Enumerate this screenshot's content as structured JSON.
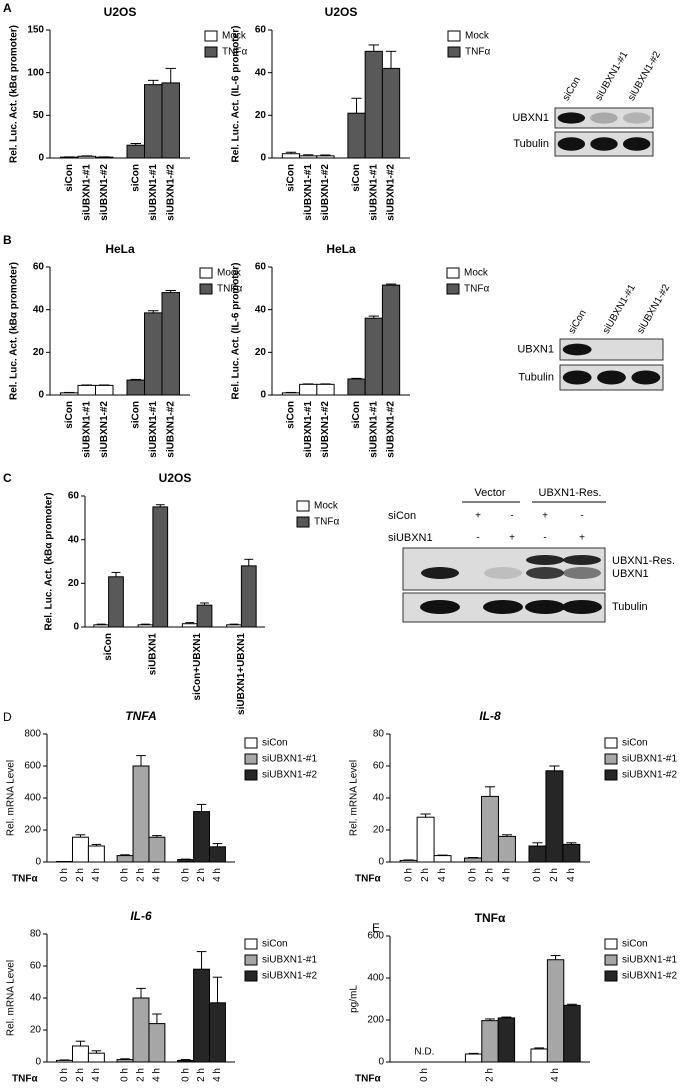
{
  "panel_labels": [
    "A",
    "B",
    "C",
    "D",
    "E"
  ],
  "chart_data": [
    {
      "type": "bar",
      "title": "U2OS",
      "y_label": "Rel. Luc. Act. (kBα promoter)",
      "categories": [
        "siCon",
        "siUBXN1-#1",
        "siUBXN1-#2",
        "siCon",
        "siUBXN1-#1",
        "siUBXN1-#2"
      ],
      "ylim": [
        0,
        150
      ],
      "yticks": [
        0,
        50,
        100,
        150
      ],
      "series": [
        {
          "name": "Mock",
          "color": "#ffffff",
          "values": [
            1,
            2,
            1,
            null,
            null,
            null
          ],
          "errors": [
            0.3,
            0.5,
            0.3,
            null,
            null,
            null
          ]
        },
        {
          "name": "TNFα",
          "color": "#595959",
          "values": [
            null,
            null,
            null,
            15,
            86,
            88
          ],
          "errors": [
            null,
            null,
            null,
            2,
            5,
            17
          ]
        }
      ]
    },
    {
      "type": "bar",
      "title": "U2OS",
      "y_label": "Rel. Luc. Act. (IL-6 promoter)",
      "categories": [
        "siCon",
        "siUBXN1-#1",
        "siUBXN1-#2",
        "siCon",
        "siUBXN1-#1",
        "siUBXN1-#2"
      ],
      "ylim": [
        0,
        60
      ],
      "yticks": [
        0,
        20,
        40,
        60
      ],
      "series": [
        {
          "name": "Mock",
          "color": "#ffffff",
          "values": [
            2,
            1,
            1,
            null,
            null,
            null
          ],
          "errors": [
            0.7,
            0.5,
            0.4,
            null,
            null,
            null
          ]
        },
        {
          "name": "TNFα",
          "color": "#595959",
          "values": [
            null,
            null,
            null,
            21,
            50,
            42
          ],
          "errors": [
            null,
            null,
            null,
            7,
            3,
            8
          ]
        }
      ]
    },
    {
      "type": "bar",
      "title": "HeLa",
      "y_label": "Rel. Luc. Act. (kBα promoter)",
      "categories": [
        "siCon",
        "siUBXN1-#1",
        "siUBXN1-#2",
        "siCon",
        "siUBXN1-#1",
        "siUBXN1-#2"
      ],
      "ylim": [
        0,
        60
      ],
      "yticks": [
        0,
        20,
        40,
        60
      ],
      "series": [
        {
          "name": "Mock",
          "color": "#ffffff",
          "values": [
            1,
            4.5,
            4.5,
            null,
            null,
            null
          ],
          "errors": [
            0.2,
            0.2,
            0.2,
            null,
            null,
            null
          ]
        },
        {
          "name": "TNFα",
          "color": "#595959",
          "values": [
            null,
            null,
            null,
            7,
            38.5,
            48
          ],
          "errors": [
            null,
            null,
            null,
            0.3,
            1,
            1
          ]
        }
      ]
    },
    {
      "type": "bar",
      "title": "HeLa",
      "y_label": "Rel. Luc. Act. (IL-6 promoter)",
      "categories": [
        "siCon",
        "siUBXN1-#1",
        "siUBXN1-#2",
        "siCon",
        "siUBXN1-#1",
        "siUBXN1-#2"
      ],
      "ylim": [
        0,
        60
      ],
      "yticks": [
        0,
        20,
        40,
        60
      ],
      "series": [
        {
          "name": "Mock",
          "color": "#ffffff",
          "values": [
            1,
            5,
            5,
            null,
            null,
            null
          ],
          "errors": [
            0.2,
            0.2,
            0.2,
            null,
            null,
            null
          ]
        },
        {
          "name": "TNFα",
          "color": "#595959",
          "values": [
            null,
            null,
            null,
            7.5,
            36,
            51.5
          ],
          "errors": [
            null,
            null,
            null,
            0.3,
            1,
            0.5
          ]
        }
      ]
    },
    {
      "type": "bar",
      "title": "U2OS",
      "y_label": "Rel. Luc. Act. (kBα promoter)",
      "categories": [
        "siCon",
        "siUBXN1",
        "siCon+UBXN1",
        "siUBXN1+UBXN1"
      ],
      "ylim": [
        0,
        60
      ],
      "yticks": [
        0,
        20,
        40,
        60
      ],
      "series": [
        {
          "name": "Mock",
          "color": "#ffffff",
          "values": [
            1,
            1,
            1.5,
            1
          ],
          "errors": [
            0.3,
            0.3,
            0.5,
            0.3
          ]
        },
        {
          "name": "TNFα",
          "color": "#595959",
          "values": [
            23,
            55,
            10,
            28
          ],
          "errors": [
            2,
            1,
            1,
            3
          ]
        }
      ]
    },
    {
      "type": "bar",
      "title": "TNFA",
      "title_italic": true,
      "y_label": "Rel. mRNA Level",
      "x_label": "TNFα",
      "categories": [
        "0 h",
        "2 h",
        "4 h",
        "0 h",
        "2 h",
        "4 h",
        "0 h",
        "2 h",
        "4 h"
      ],
      "ylim": [
        0,
        800
      ],
      "yticks": [
        0,
        200,
        400,
        600,
        800
      ],
      "series": [
        {
          "name": "siCon",
          "color": "#ffffff",
          "values": [
            3,
            155,
            100,
            null,
            null,
            null,
            null,
            null,
            null
          ],
          "errors": [
            null,
            15,
            10,
            null,
            null,
            null,
            null,
            null,
            null
          ]
        },
        {
          "name": "siUBXN1-#1",
          "color": "#a6a6a6",
          "values": [
            null,
            null,
            null,
            40,
            600,
            155,
            null,
            null,
            null
          ],
          "errors": [
            null,
            null,
            null,
            5,
            65,
            10,
            null,
            null,
            null
          ]
        },
        {
          "name": "siUBXN1-#2",
          "color": "#262626",
          "values": [
            null,
            null,
            null,
            null,
            null,
            null,
            15,
            315,
            95
          ],
          "errors": [
            null,
            null,
            null,
            null,
            null,
            null,
            3,
            45,
            20
          ]
        }
      ]
    },
    {
      "type": "bar",
      "title": "IL-8",
      "title_italic": true,
      "y_label": "Rel. mRNA Level",
      "x_label": "TNFα",
      "categories": [
        "0 h",
        "2 h",
        "4 h",
        "0 h",
        "2 h",
        "4 h",
        "0 h",
        "2 h",
        "4 h"
      ],
      "ylim": [
        0,
        80
      ],
      "yticks": [
        0,
        20,
        40,
        60,
        80
      ],
      "series": [
        {
          "name": "siCon",
          "color": "#ffffff",
          "values": [
            1,
            28,
            4,
            null,
            null,
            null,
            null,
            null,
            null
          ],
          "errors": [
            0.3,
            2,
            0.3,
            null,
            null,
            null,
            null,
            null,
            null
          ]
        },
        {
          "name": "siUBXN1-#1",
          "color": "#a6a6a6",
          "values": [
            null,
            null,
            null,
            2.5,
            41,
            16,
            null,
            null,
            null
          ],
          "errors": [
            null,
            null,
            null,
            0.3,
            6,
            1,
            null,
            null,
            null
          ]
        },
        {
          "name": "siUBXN1-#2",
          "color": "#262626",
          "values": [
            null,
            null,
            null,
            null,
            null,
            null,
            10,
            57,
            11
          ],
          "errors": [
            null,
            null,
            null,
            null,
            null,
            null,
            2,
            3,
            1
          ]
        }
      ]
    },
    {
      "type": "bar",
      "title": "IL-6",
      "title_italic": true,
      "y_label": "Rel. mRNA Level",
      "x_label": "TNFα",
      "categories": [
        "0 h",
        "2 h",
        "4 h",
        "0 h",
        "2 h",
        "4 h",
        "0 h",
        "2 h",
        "4 h"
      ],
      "ylim": [
        0,
        80
      ],
      "yticks": [
        0,
        20,
        40,
        60,
        80
      ],
      "series": [
        {
          "name": "siCon",
          "color": "#ffffff",
          "values": [
            1,
            10,
            5.5,
            null,
            null,
            null,
            null,
            null,
            null
          ],
          "errors": [
            0.3,
            3,
            1.5,
            null,
            null,
            null,
            null,
            null,
            null
          ]
        },
        {
          "name": "siUBXN1-#1",
          "color": "#a6a6a6",
          "values": [
            null,
            null,
            null,
            1.5,
            40,
            24,
            null,
            null,
            null
          ],
          "errors": [
            null,
            null,
            null,
            0.5,
            6,
            6,
            null,
            null,
            null
          ]
        },
        {
          "name": "siUBXN1-#2",
          "color": "#262626",
          "values": [
            null,
            null,
            null,
            null,
            null,
            null,
            1,
            58,
            37
          ],
          "errors": [
            null,
            null,
            null,
            null,
            null,
            null,
            0.5,
            11,
            16
          ]
        }
      ]
    },
    {
      "type": "bar",
      "title": "TNFα",
      "y_label": "pg/mL",
      "x_label": "TNFα",
      "annotation": "N.D.",
      "categories": [
        "0 h",
        "2 h",
        "4 h"
      ],
      "ylim": [
        0,
        600
      ],
      "yticks": [
        0,
        200,
        400,
        600
      ],
      "series": [
        {
          "name": "siCon",
          "color": "#ffffff",
          "values": [
            null,
            38,
            62
          ],
          "errors": [
            null,
            3,
            5
          ]
        },
        {
          "name": "siUBXN1-#1",
          "color": "#a6a6a6",
          "values": [
            null,
            197,
            487
          ],
          "errors": [
            null,
            8,
            20
          ]
        },
        {
          "name": "siUBXN1-#2",
          "color": "#262626",
          "values": [
            null,
            210,
            270
          ],
          "errors": [
            null,
            4,
            5
          ]
        }
      ]
    }
  ],
  "blots": [
    {
      "lanes": [
        "siCon",
        "siUBXN1-#1",
        "siUBXN1-#2"
      ],
      "rows": [
        "UBXN1",
        "Tubulin"
      ]
    },
    {
      "lanes": [
        "siCon",
        "siUBXN1-#1",
        "siUBXN1-#2"
      ],
      "rows": [
        "UBXN1",
        "Tubulin"
      ]
    }
  ],
  "rescue_blot": {
    "groups": [
      "Vector",
      "UBXN1-Res."
    ],
    "treatments": [
      {
        "name": "siCon",
        "signs": [
          "+",
          "-",
          "+",
          "-"
        ]
      },
      {
        "name": "siUBXN1",
        "signs": [
          "-",
          "+",
          "-",
          "+"
        ]
      }
    ],
    "bands": [
      "UBXN1-Res.",
      "UBXN1"
    ],
    "loading": "Tubulin"
  }
}
